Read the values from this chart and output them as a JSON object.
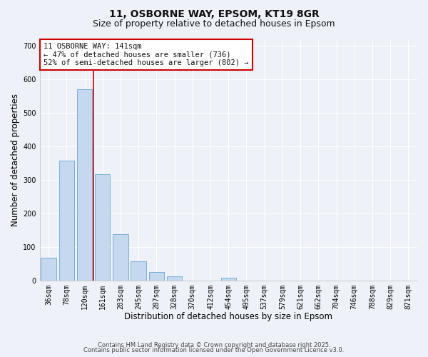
{
  "title": "11, OSBORNE WAY, EPSOM, KT19 8GR",
  "subtitle": "Size of property relative to detached houses in Epsom",
  "xlabel": "Distribution of detached houses by size in Epsom",
  "ylabel": "Number of detached properties",
  "bar_labels": [
    "36sqm",
    "78sqm",
    "120sqm",
    "161sqm",
    "203sqm",
    "245sqm",
    "287sqm",
    "328sqm",
    "370sqm",
    "412sqm",
    "454sqm",
    "495sqm",
    "537sqm",
    "579sqm",
    "621sqm",
    "662sqm",
    "704sqm",
    "746sqm",
    "788sqm",
    "829sqm",
    "871sqm"
  ],
  "bar_values": [
    67,
    358,
    570,
    318,
    138,
    57,
    26,
    13,
    0,
    0,
    8,
    0,
    0,
    0,
    0,
    0,
    0,
    0,
    0,
    0,
    0
  ],
  "bar_color": "#c5d8f0",
  "bar_edge_color": "#7aafd4",
  "vline_color": "#cc0000",
  "ylim": [
    0,
    720
  ],
  "yticks": [
    0,
    100,
    200,
    300,
    400,
    500,
    600,
    700
  ],
  "annotation_title": "11 OSBORNE WAY: 141sqm",
  "annotation_line1": "← 47% of detached houses are smaller (736)",
  "annotation_line2": "52% of semi-detached houses are larger (802) →",
  "annotation_box_color": "#ffffff",
  "annotation_box_edge": "#cc0000",
  "footer1": "Contains HM Land Registry data © Crown copyright and database right 2025.",
  "footer2": "Contains public sector information licensed under the Open Government Licence v3.0.",
  "background_color": "#eef2f8",
  "grid_color": "#ffffff",
  "title_fontsize": 10,
  "subtitle_fontsize": 9,
  "axis_label_fontsize": 8.5,
  "tick_fontsize": 7,
  "annotation_fontsize": 7.5,
  "footer_fontsize": 6
}
